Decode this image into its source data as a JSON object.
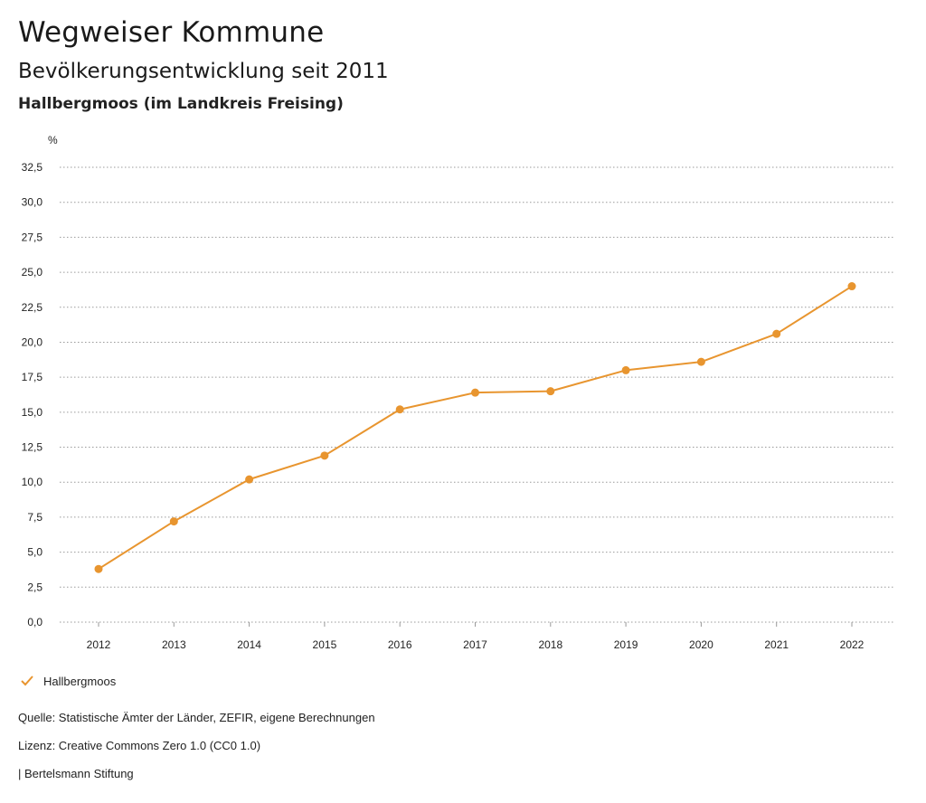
{
  "header": {
    "title": "Wegweiser Kommune",
    "subtitle": "Bevölkerungsentwicklung seit 2011",
    "region": "Hallbergmoos (im Landkreis Freising)"
  },
  "chart_data": {
    "type": "line",
    "unit_label": "%",
    "x": [
      "2012",
      "2013",
      "2014",
      "2015",
      "2016",
      "2017",
      "2018",
      "2019",
      "2020",
      "2021",
      "2022"
    ],
    "series": [
      {
        "name": "Hallbergmoos",
        "color": "#e8952f",
        "values": [
          3.8,
          7.2,
          10.2,
          11.9,
          15.2,
          16.4,
          16.5,
          18.0,
          18.6,
          20.6,
          24.0
        ]
      }
    ],
    "y_ticks": [
      "0,0",
      "2,5",
      "5,0",
      "7,5",
      "10,0",
      "12,5",
      "15,0",
      "17,5",
      "20,0",
      "22,5",
      "25,0",
      "27,5",
      "30,0",
      "32,5"
    ],
    "ylim": [
      0,
      32.5
    ],
    "grid": true,
    "legend_position": "bottom-left"
  },
  "footer": {
    "source": "Quelle: Statistische Ämter der Länder, ZEFIR, eigene Berechnungen",
    "license": "Lizenz: Creative Commons Zero 1.0 (CC0 1.0)",
    "publisher": "| Bertelsmann Stiftung"
  }
}
